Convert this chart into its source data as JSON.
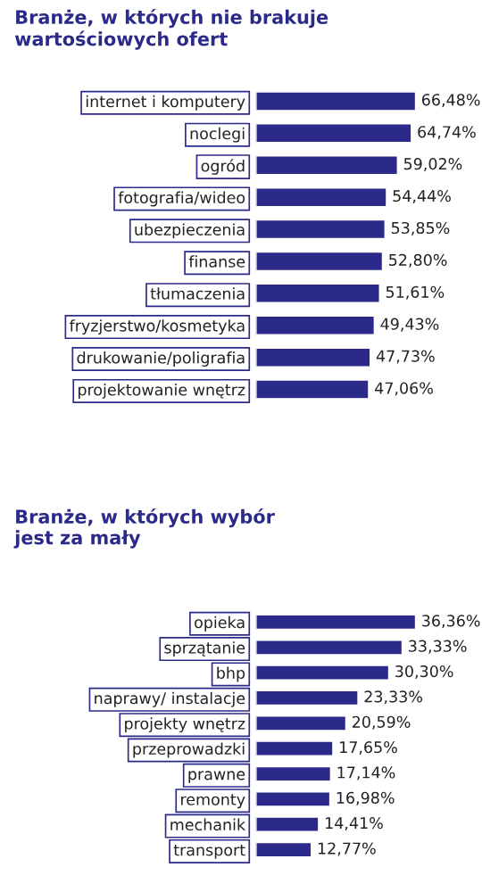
{
  "chart_data": [
    {
      "type": "bar",
      "orientation": "horizontal",
      "title": "Branże, w których nie brakuje\nwartościowych ofert",
      "categories": [
        "internet i komputery",
        "noclegi",
        "ogród",
        "fotografia/wideo",
        "ubezpieczenia",
        "finanse",
        "tłumaczenia",
        "fryzjerstwo/kosmetyka",
        "drukowanie/poligrafia",
        "projektowanie wnętrz"
      ],
      "values": [
        66.48,
        64.74,
        59.02,
        54.44,
        53.85,
        52.8,
        51.61,
        49.43,
        47.73,
        47.06
      ],
      "value_labels": [
        "66,48%",
        "64,74%",
        "59,02%",
        "54,44%",
        "53,85%",
        "52,80%",
        "51,61%",
        "49,43%",
        "47,73%",
        "47,06%"
      ],
      "color": "#2b2a8a",
      "grid": false,
      "legend": false
    },
    {
      "type": "bar",
      "orientation": "horizontal",
      "title": "Branże, w których wybór\njest za mały",
      "categories": [
        "opieka",
        "sprzątanie",
        "bhp",
        "naprawy/ instalacje",
        "projekty wnętrz",
        "przeprowadzki",
        "prawne",
        "remonty",
        "mechanik",
        "transport"
      ],
      "values": [
        36.36,
        33.33,
        30.3,
        23.33,
        20.59,
        17.65,
        17.14,
        16.98,
        14.41,
        12.77
      ],
      "value_labels": [
        "36,36%",
        "33,33%",
        "30,30%",
        "23,33%",
        "20,59%",
        "17,65%",
        "17,14%",
        "16,98%",
        "14,41%",
        "12,77%"
      ],
      "color": "#2b2a8a",
      "grid": false,
      "legend": false
    }
  ]
}
